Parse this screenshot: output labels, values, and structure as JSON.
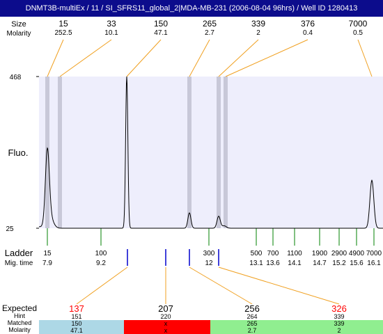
{
  "window": {
    "title": "DNMT3B-multiEx / 11 / SI_SFRS11_global_2|MDA-MB-231 (2006-08-04 96hrs) / Well ID 1280413"
  },
  "labels": {
    "size": "Size",
    "molarity": "Molarity",
    "fluo": "Fluo.",
    "ladder": "Ladder",
    "mig_time": "Mig. time",
    "expected": "Expected",
    "hint": "Hint",
    "matched": "Matched",
    "molarity_bottom": "Molarity"
  },
  "colors": {
    "title_bg": "#0c0c8c",
    "plot_bg": "#eeeefc",
    "peak_band": "#c8c8d8",
    "orange_line": "#f0a020",
    "ladder_green": "#008000",
    "blue_marker": "#0000cc",
    "expected_red": "#ff0000",
    "matched_blue": "#add8e6",
    "matched_red": "#ff0000",
    "matched_green": "#90ee90"
  },
  "chart_data": {
    "type": "line",
    "ylabel": "Fluo.",
    "ylim": [
      25,
      468
    ],
    "ytick_labels": [
      "468",
      "25"
    ],
    "grid": false,
    "peaks": [
      {
        "size": "15",
        "molarity": "252.5"
      },
      {
        "size": "33",
        "molarity": "10.1"
      },
      {
        "size": "150",
        "molarity": "47.1"
      },
      {
        "size": "265",
        "molarity": "2.7"
      },
      {
        "size": "339",
        "molarity": "2"
      },
      {
        "size": "376",
        "molarity": "0.4"
      },
      {
        "size": "7000",
        "molarity": "0.5"
      }
    ],
    "ladder": [
      {
        "size": "15",
        "mig_time": "7.9"
      },
      {
        "size": "100",
        "mig_time": "9.2"
      },
      {
        "size": "300",
        "mig_time": "12"
      },
      {
        "size": "500",
        "mig_time": "13.1"
      },
      {
        "size": "700",
        "mig_time": "13.6"
      },
      {
        "size": "1100",
        "mig_time": "14.1"
      },
      {
        "size": "1900",
        "mig_time": "14.7"
      },
      {
        "size": "2900",
        "mig_time": "15.2"
      },
      {
        "size": "4900",
        "mig_time": "15.6"
      },
      {
        "size": "7000",
        "mig_time": "16.1"
      }
    ],
    "expected": [
      {
        "expected": "137",
        "hint": "151",
        "matched": "150",
        "molarity": "47.1",
        "status": "ok"
      },
      {
        "expected": "207",
        "hint": "220",
        "matched": "x",
        "molarity": "x",
        "status": "missing"
      },
      {
        "expected": "256",
        "hint": "264",
        "matched": "265",
        "molarity": "2.7",
        "status": "found"
      },
      {
        "expected": "326",
        "hint": "339",
        "matched": "339",
        "molarity": "2",
        "status": "found"
      }
    ]
  }
}
